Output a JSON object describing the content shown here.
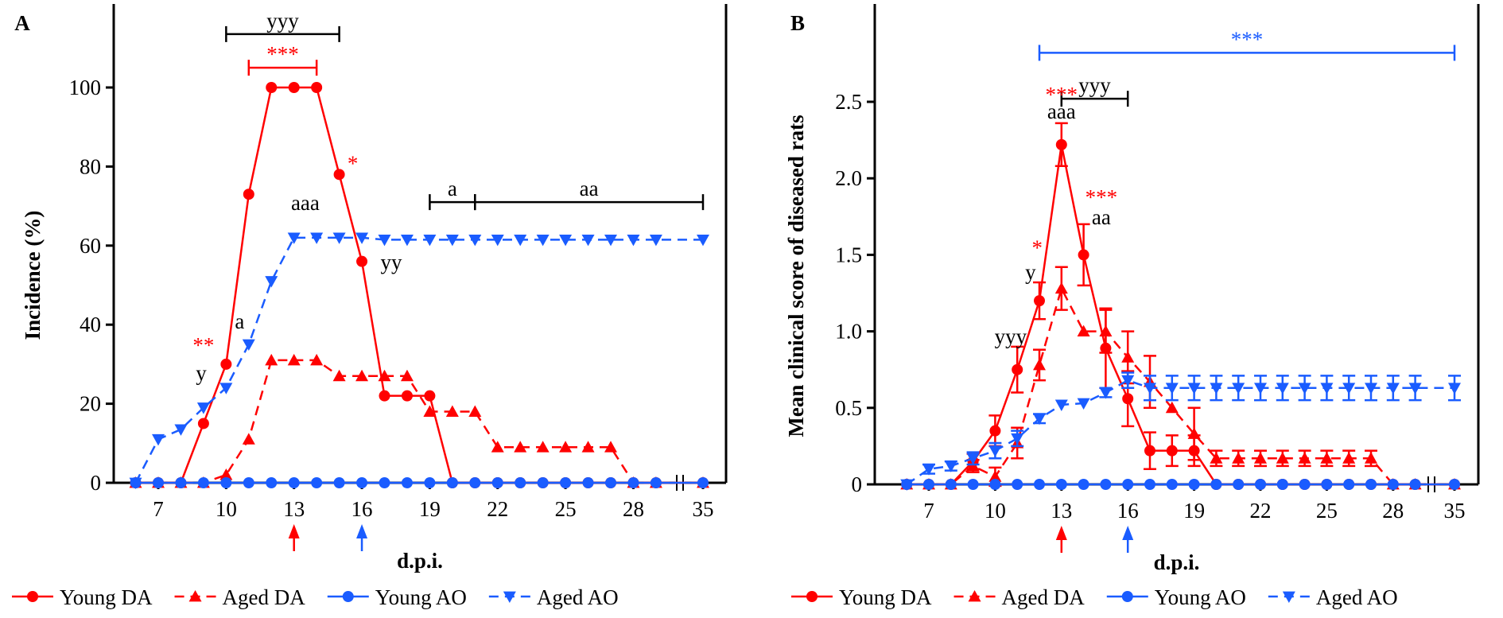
{
  "chart_data": [
    {
      "panel_label": "A",
      "type": "line",
      "ylabel": "Incidence (%)",
      "xlabel": "d.p.i.",
      "ylim": [
        0,
        115
      ],
      "yticks": [
        0,
        20,
        40,
        60,
        80,
        100
      ],
      "xticks": [
        "7",
        "10",
        "13",
        "16",
        "19",
        "22",
        "25",
        "28",
        "35"
      ],
      "x": [
        6,
        7,
        8,
        9,
        10,
        11,
        12,
        13,
        14,
        15,
        16,
        17,
        18,
        19,
        20,
        21,
        22,
        23,
        24,
        25,
        26,
        27,
        28,
        29,
        35
      ],
      "series": [
        {
          "name": "Young DA",
          "color": "#ff0000",
          "dash": false,
          "marker": "circle",
          "values": [
            0,
            0,
            0,
            15,
            30,
            73,
            100,
            100,
            100,
            78,
            56,
            22,
            22,
            22,
            0,
            0,
            0,
            0,
            0,
            0,
            0,
            0,
            0,
            0,
            0
          ]
        },
        {
          "name": "Aged DA",
          "color": "#ff0000",
          "dash": true,
          "marker": "triangle-up",
          "values": [
            0,
            0,
            0,
            0,
            2,
            11,
            31,
            31,
            31,
            27,
            27,
            27,
            27,
            18,
            18,
            18,
            9,
            9,
            9,
            9,
            9,
            9,
            0,
            0,
            0
          ]
        },
        {
          "name": "Young AO",
          "color": "#1a5cff",
          "dash": false,
          "marker": "circle",
          "values": [
            0,
            0,
            0,
            0,
            0,
            0,
            0,
            0,
            0,
            0,
            0,
            0,
            0,
            0,
            0,
            0,
            0,
            0,
            0,
            0,
            0,
            0,
            0,
            0,
            0
          ]
        },
        {
          "name": "Aged AO",
          "color": "#1a5cff",
          "dash": true,
          "marker": "triangle-down",
          "values": [
            0,
            11,
            13.5,
            19,
            24,
            35,
            51,
            62,
            62,
            62,
            62,
            61.5,
            61.5,
            61.5,
            61.5,
            61.5,
            61.5,
            61.5,
            61.5,
            61.5,
            61.5,
            61.5,
            61.5,
            61.5,
            61.5
          ]
        }
      ],
      "brackets": [
        {
          "label": "yyy",
          "from": 10,
          "to": 15,
          "y": 113.5,
          "color": "#000000"
        },
        {
          "label": "***",
          "from": 11,
          "to": 14,
          "y": 105,
          "color": "#ff0000"
        },
        {
          "label": "a",
          "from": 19,
          "to": 21,
          "y": 71,
          "color": "#000000"
        },
        {
          "label": "aa",
          "from": 21,
          "to": 35,
          "y": 71,
          "color": "#000000"
        }
      ],
      "annotations": [
        {
          "text": "aaa",
          "x": 13.5,
          "y": 69,
          "color": "#000000"
        },
        {
          "text": "*",
          "x": 15.6,
          "y": 79,
          "color": "#ff0000"
        },
        {
          "text": "yy",
          "x": 17.3,
          "y": 54,
          "color": "#000000"
        },
        {
          "text": "**",
          "x": 9,
          "y": 33,
          "color": "#ff0000"
        },
        {
          "text": "y",
          "x": 8.9,
          "y": 26,
          "color": "#000000"
        },
        {
          "text": "a",
          "x": 10.6,
          "y": 39,
          "color": "#000000"
        }
      ],
      "arrows": [
        {
          "x": 13,
          "color": "#ff0000"
        },
        {
          "x": 16,
          "color": "#1a5cff"
        }
      ]
    },
    {
      "panel_label": "B",
      "type": "line",
      "ylabel": "Mean clinical score of diseased rats",
      "xlabel": "d.p.i.",
      "ylim": [
        0,
        2.9
      ],
      "yticks": [
        "0",
        "0.5",
        "1.0",
        "1.5",
        "2.0",
        "2.5"
      ],
      "xticks": [
        "7",
        "10",
        "13",
        "16",
        "19",
        "22",
        "25",
        "28",
        "35"
      ],
      "x": [
        6,
        7,
        8,
        9,
        10,
        11,
        12,
        13,
        14,
        15,
        16,
        17,
        18,
        19,
        20,
        21,
        22,
        23,
        24,
        25,
        26,
        27,
        28,
        29,
        35
      ],
      "series": [
        {
          "name": "Young DA",
          "color": "#ff0000",
          "dash": false,
          "marker": "circle",
          "values": [
            0,
            0,
            0,
            0.15,
            0.35,
            0.75,
            1.2,
            2.22,
            1.5,
            0.89,
            0.56,
            0.22,
            0.22,
            0.22,
            0,
            0,
            0,
            0,
            0,
            0,
            0,
            0,
            0,
            0,
            0
          ],
          "errors": [
            0,
            0,
            0,
            0.05,
            0.1,
            0.15,
            0.12,
            0.14,
            0.2,
            0.26,
            0.18,
            0.12,
            0.1,
            0.1,
            0,
            0,
            0,
            0,
            0,
            0,
            0,
            0,
            0,
            0,
            0
          ]
        },
        {
          "name": "Aged DA",
          "color": "#ff0000",
          "dash": true,
          "marker": "triangle-up",
          "values": [
            0,
            0,
            0,
            0.12,
            0.05,
            0.27,
            0.78,
            1.28,
            1.0,
            1.0,
            0.83,
            0.67,
            0.5,
            0.33,
            0.17,
            0.17,
            0.17,
            0.17,
            0.17,
            0.17,
            0.17,
            0.17,
            0,
            0,
            0
          ],
          "errors": [
            0,
            0,
            0,
            0.04,
            0.06,
            0.1,
            0.1,
            0.14,
            0,
            0.14,
            0.17,
            0.17,
            0,
            0.17,
            0.05,
            0.05,
            0.05,
            0.05,
            0.05,
            0.05,
            0.05,
            0.05,
            0,
            0,
            0
          ]
        },
        {
          "name": "Young AO",
          "color": "#1a5cff",
          "dash": false,
          "marker": "circle",
          "values": [
            0,
            0,
            0,
            0,
            0,
            0,
            0,
            0,
            0,
            0,
            0,
            0,
            0,
            0,
            0,
            0,
            0,
            0,
            0,
            0,
            0,
            0,
            0,
            0,
            0
          ],
          "errors": [
            0,
            0,
            0,
            0,
            0,
            0,
            0,
            0,
            0,
            0,
            0,
            0,
            0,
            0,
            0,
            0,
            0,
            0,
            0,
            0,
            0,
            0,
            0,
            0,
            0
          ]
        },
        {
          "name": "Aged AO",
          "color": "#1a5cff",
          "dash": true,
          "marker": "triangle-down",
          "values": [
            0,
            0.1,
            0.12,
            0.17,
            0.22,
            0.3,
            0.43,
            0.52,
            0.53,
            0.6,
            0.68,
            0.63,
            0.63,
            0.63,
            0.63,
            0.63,
            0.63,
            0.63,
            0.63,
            0.63,
            0.63,
            0.63,
            0.63,
            0.63,
            0.63
          ],
          "errors": [
            0,
            0.03,
            0.03,
            0.04,
            0.05,
            0.05,
            0.03,
            0,
            0,
            0.03,
            0.05,
            0.08,
            0.08,
            0.08,
            0.08,
            0.08,
            0.08,
            0.08,
            0.08,
            0.08,
            0.08,
            0.08,
            0.08,
            0.08,
            0.08
          ]
        }
      ],
      "brackets": [
        {
          "label": "***",
          "from": 12,
          "to": 35,
          "y": 2.82,
          "color": "#1a5cff"
        },
        {
          "label": "yyy",
          "from": 13,
          "to": 16,
          "y": 2.52,
          "color": "#000000"
        }
      ],
      "annotations": [
        {
          "text": "***",
          "x": 13,
          "y": 2.5,
          "color": "#ff0000"
        },
        {
          "text": "aaa",
          "x": 13,
          "y": 2.39,
          "color": "#000000"
        },
        {
          "text": "***",
          "x": 14.8,
          "y": 1.83,
          "color": "#ff0000"
        },
        {
          "text": "aa",
          "x": 14.8,
          "y": 1.7,
          "color": "#000000"
        },
        {
          "text": "*",
          "x": 11.9,
          "y": 1.5,
          "color": "#ff0000"
        },
        {
          "text": "y",
          "x": 11.6,
          "y": 1.34,
          "color": "#000000"
        },
        {
          "text": "yyy",
          "x": 10.7,
          "y": 0.92,
          "color": "#000000"
        }
      ],
      "arrows": [
        {
          "x": 13,
          "color": "#ff0000"
        },
        {
          "x": 16,
          "color": "#1a5cff"
        }
      ]
    }
  ]
}
